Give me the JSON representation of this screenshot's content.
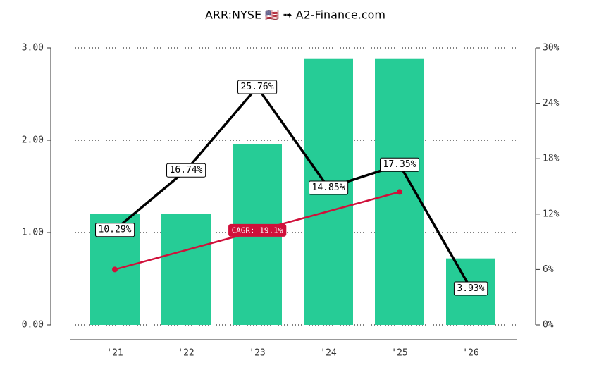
{
  "chart_data": {
    "type": "bar",
    "title": "ARR:NYSE 🇺🇸 ➟ A2-Finance.com",
    "categories": [
      "'21",
      "'22",
      "'23",
      "'24",
      "'25",
      "'26"
    ],
    "values": [
      1.2,
      1.2,
      1.96,
      2.88,
      2.88,
      0.72
    ],
    "color": "#26cc96",
    "ylim": [
      0,
      3
    ],
    "yticks": [
      {
        "value": 0,
        "label": "0.00"
      },
      {
        "value": 1,
        "label": "1.00"
      },
      {
        "value": 2,
        "label": "2.00"
      },
      {
        "value": 3,
        "label": "3.00"
      }
    ],
    "y2lim": [
      0,
      30
    ],
    "y2ticks": [
      {
        "value": 0,
        "label": "0%"
      },
      {
        "value": 6,
        "label": "6%"
      },
      {
        "value": 12,
        "label": "12%"
      },
      {
        "value": 18,
        "label": "18%"
      },
      {
        "value": 24,
        "label": "24%"
      },
      {
        "value": 30,
        "label": "30%"
      }
    ],
    "grid": true,
    "series": [
      {
        "type": "line",
        "axis": "y2",
        "color": "#000000",
        "values": [
          10.29,
          16.74,
          25.76,
          14.85,
          17.35,
          3.93
        ],
        "value_labels": [
          "10.29%",
          "16.74%",
          "25.76%",
          "14.85%",
          "17.35%",
          "3.93%"
        ]
      },
      {
        "type": "line",
        "axis": "y2",
        "color": "#d0103a",
        "name": "CAGR: 19.1%",
        "values": [
          6.0,
          8.1,
          10.2,
          12.3,
          14.4,
          null
        ]
      }
    ]
  }
}
